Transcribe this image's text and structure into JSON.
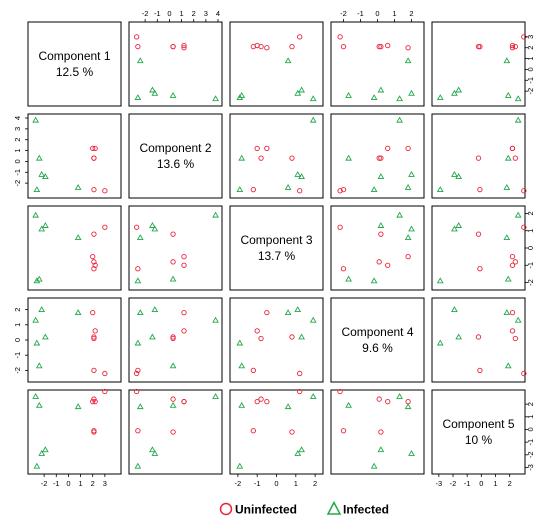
{
  "chart_data": {
    "type": "scatter",
    "components": [
      {
        "name": "Component 1",
        "pct": "12.5 %",
        "range": [
          -3,
          4
        ],
        "ticks": [
          "-2",
          "-1",
          "0",
          "1",
          "2",
          "3"
        ]
      },
      {
        "name": "Component 2",
        "pct": "13.6 %",
        "range": [
          -3,
          4
        ],
        "ticks": [
          "-2",
          "-1",
          "0",
          "1",
          "2",
          "3",
          "4"
        ]
      },
      {
        "name": "Component 3",
        "pct": "13.7 %",
        "range": [
          -2.2,
          2.2
        ],
        "ticks": [
          "-2",
          "-1",
          "0",
          "1",
          "2"
        ]
      },
      {
        "name": "Component 4",
        "pct": "9.6 %",
        "range": [
          -2.5,
          2.5
        ],
        "ticks": [
          "-2",
          "-1",
          "0",
          "1",
          "2"
        ]
      },
      {
        "name": "Component 5",
        "pct": "10 %",
        "range": [
          -3.2,
          2.8
        ],
        "ticks": [
          "-3",
          "-2",
          "-1",
          "0",
          "1",
          "2"
        ]
      }
    ],
    "series": [
      {
        "name": "Uninfected",
        "color": "#e8243c",
        "marker": "circle",
        "points": [
          [
            2.0,
            1.2,
            -0.5,
            1.8,
            2.2
          ],
          [
            2.1,
            0.3,
            0.8,
            0.2,
            -0.2
          ],
          [
            2.2,
            1.2,
            -1.0,
            0.6,
            2.2
          ],
          [
            2.1,
            0.3,
            -0.8,
            0.1,
            2.4
          ],
          [
            3.0,
            -2.7,
            1.2,
            -2.2,
            3.0
          ],
          [
            2.1,
            -2.6,
            -1.2,
            -2.0,
            -0.1
          ]
        ]
      },
      {
        "name": "Infected",
        "color": "#22a84a",
        "marker": "triangle",
        "points": [
          [
            -2.7,
            3.8,
            1.9,
            1.3,
            2.6
          ],
          [
            -2.4,
            0.3,
            -1.8,
            -1.7,
            1.9
          ],
          [
            -2.2,
            -1.2,
            1.1,
            2.0,
            -1.9
          ],
          [
            -1.9,
            -1.4,
            1.3,
            0.2,
            -1.6
          ],
          [
            -2.6,
            -2.6,
            -1.9,
            -0.2,
            -2.9
          ],
          [
            0.8,
            -2.4,
            0.6,
            1.8,
            1.8
          ]
        ]
      }
    ],
    "legend": {
      "position": "bottom",
      "entries": [
        "Uninfected",
        "Infected"
      ]
    }
  }
}
